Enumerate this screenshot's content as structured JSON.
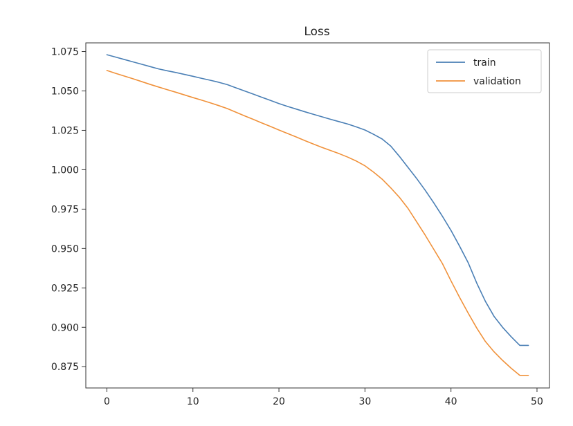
{
  "chart_data": {
    "type": "line",
    "title": "Loss",
    "xlabel": "",
    "ylabel": "",
    "xlim": [
      -2.45,
      51.45
    ],
    "ylim": [
      0.8615,
      1.0805
    ],
    "xticks": [
      0,
      10,
      20,
      30,
      40,
      50
    ],
    "xtick_labels": [
      "0",
      "10",
      "20",
      "30",
      "40",
      "50"
    ],
    "yticks": [
      0.875,
      0.9,
      0.925,
      0.95,
      0.975,
      1.0,
      1.025,
      1.05,
      1.075
    ],
    "ytick_labels": [
      "0.875",
      "0.900",
      "0.925",
      "0.950",
      "0.975",
      "1.000",
      "1.025",
      "1.050",
      "1.075"
    ],
    "grid": false,
    "legend_position": "top-right",
    "x": [
      0,
      1,
      2,
      3,
      4,
      5,
      6,
      7,
      8,
      9,
      10,
      11,
      12,
      13,
      14,
      15,
      16,
      17,
      18,
      19,
      20,
      21,
      22,
      23,
      24,
      25,
      26,
      27,
      28,
      29,
      30,
      31,
      32,
      33,
      34,
      35,
      36,
      37,
      38,
      39,
      40,
      41,
      42,
      43,
      44,
      45,
      46,
      47,
      48,
      49
    ],
    "series": [
      {
        "name": "train",
        "color": "#4a7fb5",
        "values": [
          1.073,
          1.0715,
          1.07,
          1.0685,
          1.067,
          1.0655,
          1.064,
          1.0628,
          1.0617,
          1.0605,
          1.0593,
          1.058,
          1.0568,
          1.0555,
          1.054,
          1.052,
          1.05,
          1.048,
          1.046,
          1.044,
          1.042,
          1.0402,
          1.0385,
          1.0368,
          1.0352,
          1.0336,
          1.032,
          1.0305,
          1.029,
          1.0272,
          1.0252,
          1.0225,
          1.0195,
          1.015,
          1.0085,
          1.0015,
          0.9945,
          0.987,
          0.979,
          0.9705,
          0.9615,
          0.9515,
          0.941,
          0.928,
          0.9165,
          0.907,
          0.9,
          0.894,
          0.8885,
          0.8885
        ]
      },
      {
        "name": "validation",
        "color": "#f0913a",
        "values": [
          1.063,
          1.0612,
          1.0595,
          1.0578,
          1.056,
          1.0542,
          1.0525,
          1.0508,
          1.0492,
          1.0475,
          1.0458,
          1.0442,
          1.0425,
          1.0407,
          1.0388,
          1.0365,
          1.0342,
          1.032,
          1.0297,
          1.0275,
          1.0252,
          1.023,
          1.0208,
          1.0185,
          1.0163,
          1.0142,
          1.0122,
          1.0102,
          1.008,
          1.0055,
          1.0025,
          0.9985,
          0.994,
          0.9885,
          0.9825,
          0.9755,
          0.967,
          0.9585,
          0.9495,
          0.9405,
          0.9295,
          0.919,
          0.909,
          0.8995,
          0.891,
          0.8845,
          0.879,
          0.874,
          0.8695,
          0.8695
        ]
      }
    ]
  }
}
